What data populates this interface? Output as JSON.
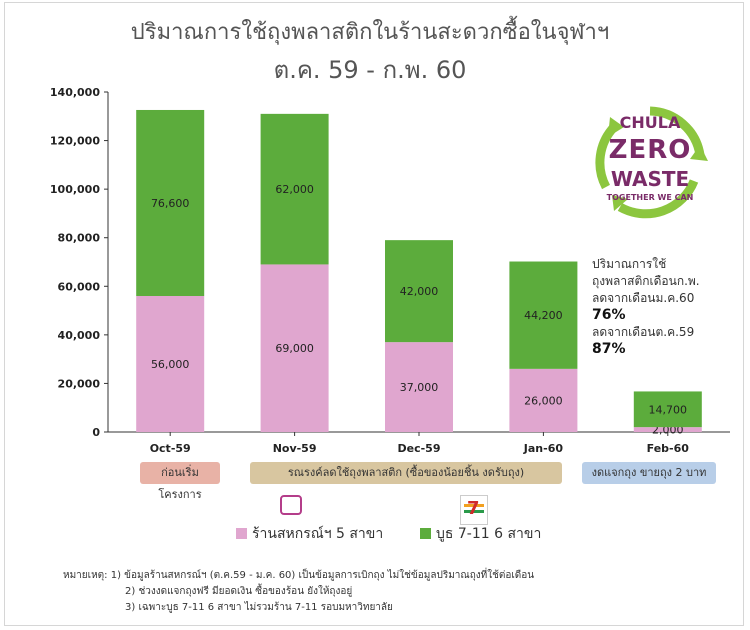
{
  "title": {
    "line1": "ปริมาณการใช้ถุงพลาสติกในร้านสะดวกซื้อในจุฬาฯ",
    "line2": "ต.ค. 59 - ก.พ. 60"
  },
  "chart_data": {
    "type": "bar",
    "stacked": true,
    "categories": [
      "Oct-59",
      "Nov-59",
      "Dec-59",
      "Jan-60",
      "Feb-60"
    ],
    "series": [
      {
        "name": "ร้านสหกรณ์ฯ 5 สาขา",
        "values": [
          56000,
          69000,
          37000,
          26000,
          2000
        ],
        "labels": [
          "56,000",
          "69,000",
          "37,000",
          "26,000",
          "2,000"
        ],
        "color": "#e0a6cf"
      },
      {
        "name": "บูธ 7-11 6 สาขา",
        "values": [
          76600,
          62000,
          42000,
          44200,
          14700
        ],
        "labels": [
          "76,600",
          "62,000",
          "42,000",
          "44,200",
          "14,700"
        ],
        "color": "#5cac3c"
      }
    ],
    "ylim": [
      0,
      140000
    ],
    "yticks": [
      0,
      20000,
      40000,
      60000,
      80000,
      100000,
      120000,
      140000
    ],
    "ytick_labels": [
      "0",
      "20,000",
      "40,000",
      "60,000",
      "80,000",
      "100,000",
      "120,000",
      "140,000"
    ],
    "grid": false,
    "legend": "bottom"
  },
  "logo": {
    "line1": "CHULA",
    "line2": "ZERO",
    "line3": "WASTE",
    "line4": "TOGETHER WE CAN",
    "color": "#7a2b68",
    "ring_color": "#8cc63f"
  },
  "summary": {
    "line1": "ปริมาณการใช้",
    "line2": "ถุงพลาสติกเดือนก.พ.",
    "line3": "ลดจากเดือนม.ค.60",
    "pct1": "76%",
    "line4": "ลดจากเดือนต.ค.59",
    "pct2": "87%"
  },
  "phases": {
    "p1": "ก่อนเริ่มโครงการ",
    "p2": "รณรงค์ลดใช้ถุงพลาสติก (ซื้อของน้อยชิ้น งดรับถุง)",
    "p3": "งดแจกถุง ขายถุง 2 บาท"
  },
  "legend_icons": {
    "coop": "coop-store-icon",
    "seven": "seven-eleven-icon"
  },
  "notes": {
    "label": "หมายเหตุ:",
    "n1": "1) ข้อมูลร้านสหกรณ์ฯ (ต.ค.59 - ม.ค. 60) เป็นข้อมูลการเบิกถุง ไม่ใช่ข้อมูลปริมาณถุงที่ใช้ต่อเดือน",
    "n2": "2) ช่วงงดแจกถุงฟรี มียอดเงิน ซื้อของร้อน ยังให้ถุงอยู่",
    "n3": "3) เฉพาะบูธ 7-11 6 สาขา ไม่รวมร้าน 7-11 รอบมหาวิทยาลัย"
  }
}
